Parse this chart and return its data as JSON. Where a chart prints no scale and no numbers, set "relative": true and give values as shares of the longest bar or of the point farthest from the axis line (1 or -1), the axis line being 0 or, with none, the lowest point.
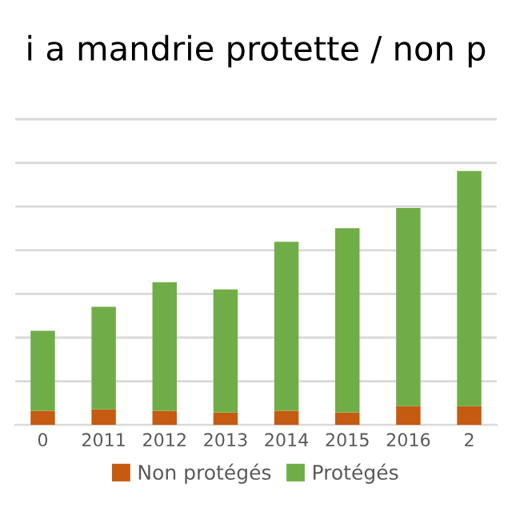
{
  "chart_data": {
    "type": "bar",
    "title": "i a mandrie protette / non p",
    "relative": true,
    "stacked": true,
    "categories": [
      "0",
      "2011",
      "2012",
      "2013",
      "2014",
      "2015",
      "2016",
      "2"
    ],
    "series": [
      {
        "name": "Non protégés",
        "color": "#c55a11",
        "values": [
          0.056,
          0.061,
          0.056,
          0.049,
          0.056,
          0.049,
          0.074,
          0.074
        ]
      },
      {
        "name": "Protégés",
        "color": "#70ad47",
        "values": [
          0.315,
          0.404,
          0.506,
          0.485,
          0.665,
          0.726,
          0.78,
          0.926
        ]
      }
    ],
    "grid": "y",
    "legend": "bottom"
  }
}
